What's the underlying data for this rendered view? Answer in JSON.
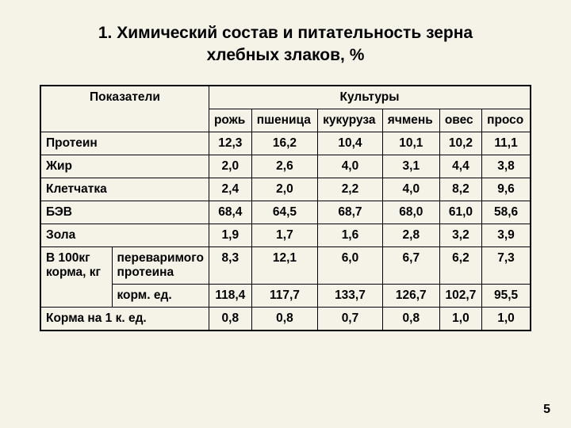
{
  "title_line1": "1. Химический состав и питательность зерна",
  "title_line2": "хлебных злаков, %",
  "headers": {
    "indicator": "Показатели",
    "crops": "Культуры",
    "col1": "рожь",
    "col2": "пшеница",
    "col3": "кукуруза",
    "col4": "ячмень",
    "col5": "овес",
    "col6": "просо"
  },
  "rows": [
    {
      "label": "Протеин",
      "v": [
        "12,3",
        "16,2",
        "10,4",
        "10,1",
        "10,2",
        "11,1"
      ]
    },
    {
      "label": "Жир",
      "v": [
        "2,0",
        "2,6",
        "4,0",
        "3,1",
        "4,4",
        "3,8"
      ]
    },
    {
      "label": "Клетчатка",
      "v": [
        "2,4",
        "2,0",
        "2,2",
        "4,0",
        "8,2",
        "9,6"
      ]
    },
    {
      "label": "БЭВ",
      "v": [
        "68,4",
        "64,5",
        "68,7",
        "68,0",
        "61,0",
        "58,6"
      ]
    },
    {
      "label": "Зола",
      "v": [
        "1,9",
        "1,7",
        "1,6",
        "2,8",
        "3,2",
        "3,9"
      ]
    }
  ],
  "merged": {
    "label_main": "В 100кг корма, кг",
    "sub1": "переваримого протеина",
    "sub2": "корм. ед.",
    "r1": [
      "8,3",
      "12,1",
      "6,0",
      "6,7",
      "6,2",
      "7,3"
    ],
    "r2": [
      "118,4",
      "117,7",
      "133,7",
      "126,7",
      "102,7",
      "95,5"
    ]
  },
  "final": {
    "label": "Корма на 1 к. ед.",
    "v": [
      "0,8",
      "0,8",
      "0,7",
      "0,8",
      "1,0",
      "1,0"
    ]
  },
  "page_number": "5"
}
